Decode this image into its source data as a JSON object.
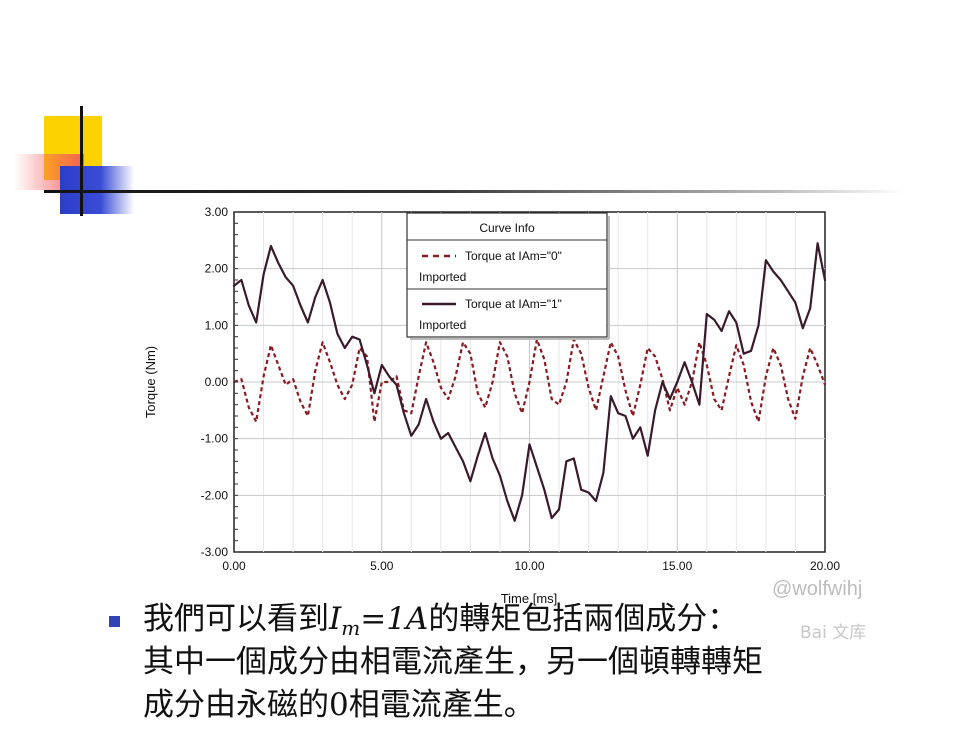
{
  "slide": {
    "watermark": "@wolfwihj",
    "watermark_logo": "Bai 文库",
    "bullet": {
      "line1_pre": "我們可以看到",
      "var_main": "I",
      "var_sub": "m",
      "eq_rest": "=1A",
      "line1_post": "的轉矩包括兩個成分：",
      "line2": "其中一個成分由相電流產生，另一個頓轉轉矩",
      "line3": "成分由永磁的0相電流產生。"
    }
  },
  "chart_data": {
    "type": "line",
    "xlabel": "Time [ms]",
    "ylabel": "Torque (Nm)",
    "xlim": [
      0,
      20
    ],
    "ylim": [
      -3,
      3
    ],
    "xticks": [
      "0.00",
      "5.00",
      "10.00",
      "15.00",
      "20.00"
    ],
    "yticks": [
      "3.00",
      "2.00",
      "1.00",
      "0.00",
      "-1.00",
      "-2.00",
      "-3.00"
    ],
    "grid": true,
    "legend": {
      "title": "Curve Info",
      "placement": "top-center",
      "entries": [
        {
          "label": "Torque at IAm=\"0\"",
          "sublabel": "Imported",
          "style": "dashed",
          "color": "#8a1a22"
        },
        {
          "label": "Torque at IAm=\"1\"",
          "sublabel": "Imported",
          "style": "solid",
          "color": "#3a1a2c"
        }
      ]
    },
    "series": [
      {
        "name": "Torque at IAm=\"0\"",
        "color": "#8a1a22",
        "style": "dashed",
        "x": [
          0.0,
          0.25,
          0.5,
          0.75,
          1.0,
          1.25,
          1.5,
          1.75,
          2.0,
          2.25,
          2.5,
          2.75,
          3.0,
          3.25,
          3.5,
          3.75,
          4.0,
          4.25,
          4.5,
          4.75,
          5.0,
          5.25,
          5.5,
          5.75,
          6.0,
          6.25,
          6.5,
          6.75,
          7.0,
          7.25,
          7.5,
          7.75,
          8.0,
          8.25,
          8.5,
          8.75,
          9.0,
          9.25,
          9.5,
          9.75,
          10.0,
          10.25,
          10.5,
          10.75,
          11.0,
          11.25,
          11.5,
          11.75,
          12.0,
          12.25,
          12.5,
          12.75,
          13.0,
          13.25,
          13.5,
          13.75,
          14.0,
          14.25,
          14.5,
          14.75,
          15.0,
          15.25,
          15.5,
          15.75,
          16.0,
          16.25,
          16.5,
          16.75,
          17.0,
          17.25,
          17.5,
          17.75,
          18.0,
          18.25,
          18.5,
          18.75,
          19.0,
          19.25,
          19.5,
          19.75,
          20.0
        ],
        "values": [
          0.0,
          0.05,
          -0.45,
          -0.7,
          0.1,
          0.65,
          0.3,
          -0.05,
          0.05,
          -0.35,
          -0.6,
          0.2,
          0.7,
          0.35,
          -0.05,
          -0.3,
          -0.05,
          0.6,
          0.45,
          -0.7,
          0.0,
          0.0,
          0.1,
          -0.5,
          -0.55,
          0.1,
          0.7,
          0.35,
          -0.1,
          -0.3,
          0.1,
          0.7,
          0.5,
          -0.2,
          -0.45,
          0.0,
          0.7,
          0.45,
          -0.2,
          -0.55,
          0.0,
          0.75,
          0.4,
          -0.3,
          -0.4,
          0.0,
          0.75,
          0.5,
          -0.1,
          -0.5,
          0.1,
          0.7,
          0.45,
          -0.15,
          -0.6,
          -0.05,
          0.6,
          0.45,
          0.05,
          -0.5,
          -0.1,
          -0.4,
          0.0,
          0.7,
          0.3,
          -0.3,
          -0.5,
          0.1,
          0.65,
          0.3,
          -0.35,
          -0.7,
          0.1,
          0.6,
          0.3,
          -0.3,
          -0.65,
          0.1,
          0.6,
          0.3,
          -0.05
        ]
      },
      {
        "name": "Torque at IAm=\"1\"",
        "color": "#3a1a2c",
        "style": "solid",
        "x": [
          0.0,
          0.25,
          0.5,
          0.75,
          1.0,
          1.25,
          1.5,
          1.75,
          2.0,
          2.25,
          2.5,
          2.75,
          3.0,
          3.25,
          3.5,
          3.75,
          4.0,
          4.25,
          4.5,
          4.75,
          5.0,
          5.25,
          5.5,
          5.75,
          6.0,
          6.25,
          6.5,
          6.75,
          7.0,
          7.25,
          7.5,
          7.75,
          8.0,
          8.25,
          8.5,
          8.75,
          9.0,
          9.25,
          9.5,
          9.75,
          10.0,
          10.25,
          10.5,
          10.75,
          11.0,
          11.25,
          11.5,
          11.75,
          12.0,
          12.25,
          12.5,
          12.75,
          13.0,
          13.25,
          13.5,
          13.75,
          14.0,
          14.25,
          14.5,
          14.75,
          15.0,
          15.25,
          15.5,
          15.75,
          16.0,
          16.25,
          16.5,
          16.75,
          17.0,
          17.25,
          17.5,
          17.75,
          18.0,
          18.25,
          18.5,
          18.75,
          19.0,
          19.25,
          19.5,
          19.75,
          20.0
        ],
        "values": [
          1.7,
          1.8,
          1.35,
          1.05,
          1.9,
          2.4,
          2.1,
          1.85,
          1.7,
          1.35,
          1.05,
          1.5,
          1.8,
          1.4,
          0.85,
          0.6,
          0.8,
          0.75,
          0.3,
          -0.2,
          0.3,
          0.1,
          -0.05,
          -0.55,
          -0.95,
          -0.75,
          -0.3,
          -0.7,
          -1.0,
          -0.9,
          -1.15,
          -1.4,
          -1.75,
          -1.3,
          -0.9,
          -1.35,
          -1.65,
          -2.1,
          -2.45,
          -2.0,
          -1.1,
          -1.5,
          -1.9,
          -2.4,
          -2.25,
          -1.4,
          -1.35,
          -1.9,
          -1.95,
          -2.1,
          -1.6,
          -0.25,
          -0.55,
          -0.6,
          -1.0,
          -0.8,
          -1.3,
          -0.5,
          0.0,
          -0.3,
          0.0,
          0.35,
          0.0,
          -0.4,
          1.2,
          1.1,
          0.9,
          1.25,
          1.05,
          0.5,
          0.55,
          1.0,
          2.15,
          1.95,
          1.8,
          1.6,
          1.4,
          0.95,
          1.3,
          2.45,
          1.8
        ]
      }
    ]
  }
}
